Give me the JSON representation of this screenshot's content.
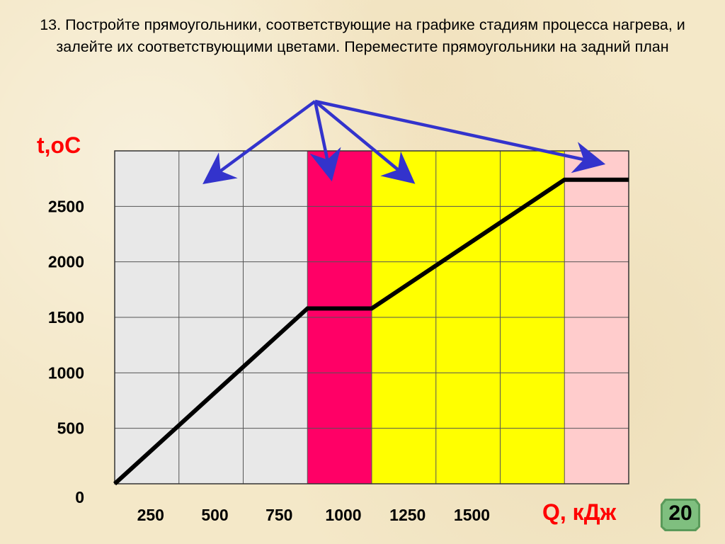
{
  "task": {
    "text": "13. Постройте прямоугольники, соответствующие на графике стадиям процесса нагрева, и залейте их соответствующими цветами. Переместите прямоугольники на задний план"
  },
  "chart_data": {
    "type": "line",
    "ylabel": "t,oC",
    "xlabel": "Q, кДж",
    "x_ticks": [
      "250",
      "500",
      "750",
      "1000",
      "1250",
      "1500"
    ],
    "y_ticks": [
      "0",
      "500",
      "1000",
      "1500",
      "2000",
      "2500"
    ],
    "xlim": [
      0,
      2000
    ],
    "ylim": [
      0,
      3000
    ],
    "grid": true,
    "series": [
      {
        "x": [
          0,
          750,
          1000,
          1750,
          2000
        ],
        "y": [
          0,
          1580,
          1580,
          2740,
          2740
        ]
      }
    ],
    "regions": [
      {
        "x0": 0,
        "x1": 750,
        "color": "#e8e8e8"
      },
      {
        "x0": 750,
        "x1": 1000,
        "color": "#ff0066"
      },
      {
        "x0": 1000,
        "x1": 1750,
        "color": "#ffff00"
      },
      {
        "x0": 1750,
        "x1": 2000,
        "color": "#ffcccc"
      }
    ],
    "colors": {
      "line": "#000000",
      "grid": "#555555",
      "axis_title": "#ff0000",
      "arrows": "#3333cc"
    }
  },
  "slide": {
    "number": "20"
  }
}
